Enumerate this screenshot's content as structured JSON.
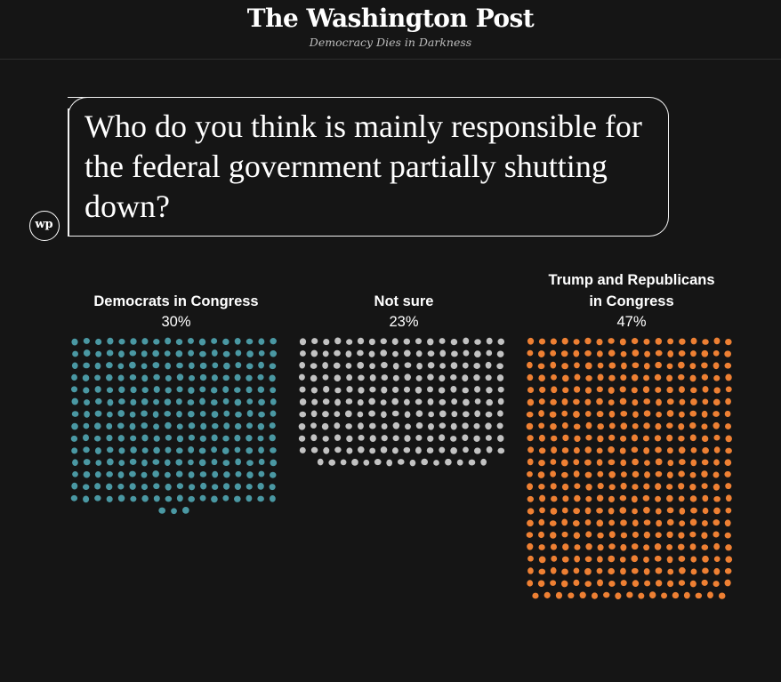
{
  "masthead": {
    "brand": "The Washington Post",
    "tagline": "Democracy Dies in Darkness",
    "logo_mark": "wp"
  },
  "chart_data": {
    "type": "dot-grid",
    "title": "Who do you think is mainly responsible for the federal government partially shutting down?",
    "unit": "dot",
    "series": [
      {
        "name": "Democrats in Congress",
        "label_lines": [
          "Democrats in Congress"
        ],
        "percent_text": "30%",
        "value": 30,
        "dots": 255,
        "color": "#4a98a3"
      },
      {
        "name": "Not sure",
        "label_lines": [
          "Not sure"
        ],
        "percent_text": "23%",
        "value": 23,
        "dots": 195,
        "color": "#c2c2c2"
      },
      {
        "name": "Trump and Republicans in Congress",
        "label_lines": [
          "Trump and Republicans",
          "in Congress"
        ],
        "percent_text": "47%",
        "value": 47,
        "dots": 395,
        "color": "#ee8033"
      }
    ]
  }
}
